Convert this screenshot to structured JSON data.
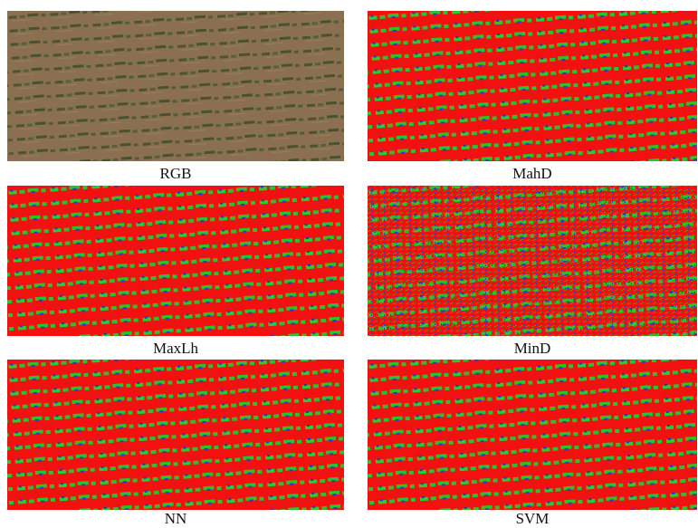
{
  "panels": [
    {
      "label": "RGB"
    },
    {
      "label": "MahD"
    },
    {
      "label": "MaxLh"
    },
    {
      "label": "MinD"
    },
    {
      "label": "NN"
    },
    {
      "label": "SVM"
    }
  ]
}
